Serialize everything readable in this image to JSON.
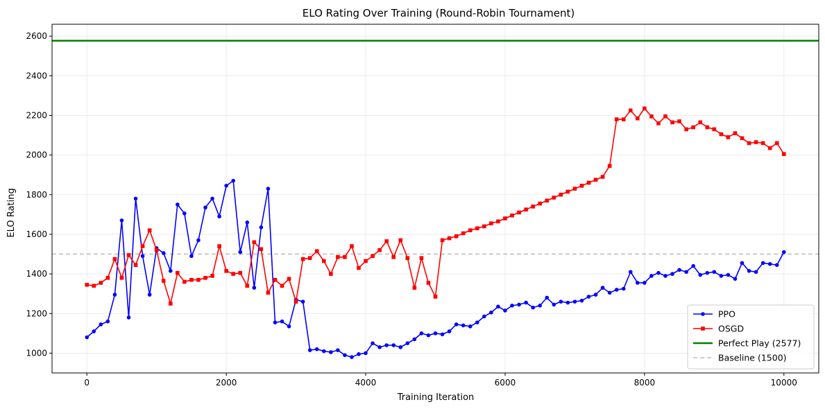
{
  "chart_data": {
    "type": "line",
    "title": "ELO Rating Over Training (Round-Robin Tournament)",
    "xlabel": "Training Iteration",
    "ylabel": "ELO Rating",
    "xlim": [
      -500,
      10500
    ],
    "ylim": [
      900,
      2660
    ],
    "xticks": [
      0,
      2000,
      4000,
      6000,
      8000,
      10000
    ],
    "yticks": [
      1000,
      1200,
      1400,
      1600,
      1800,
      2000,
      2200,
      2400,
      2600
    ],
    "grid": true,
    "legend_position": "bottom-right",
    "x_step": 100,
    "series": [
      {
        "name": "PPO",
        "color": "#0000ff",
        "marker": "circle",
        "values": [
          1080,
          1110,
          1145,
          1160,
          1295,
          1670,
          1180,
          1780,
          1490,
          1295,
          1530,
          1505,
          1415,
          1750,
          1705,
          1490,
          1570,
          1735,
          1780,
          1690,
          1845,
          1870,
          1510,
          1660,
          1330,
          1635,
          1830,
          1155,
          1160,
          1135,
          1270,
          1260,
          1015,
          1020,
          1010,
          1005,
          1015,
          990,
          980,
          995,
          1000,
          1050,
          1030,
          1040,
          1040,
          1030,
          1050,
          1070,
          1100,
          1090,
          1100,
          1095,
          1110,
          1145,
          1140,
          1135,
          1155,
          1185,
          1205,
          1235,
          1215,
          1240,
          1245,
          1255,
          1230,
          1240,
          1280,
          1245,
          1260,
          1255,
          1260,
          1265,
          1285,
          1295,
          1330,
          1305,
          1320,
          1325,
          1410,
          1355,
          1355,
          1390,
          1405,
          1390,
          1400,
          1420,
          1410,
          1440,
          1395,
          1405,
          1410,
          1390,
          1395,
          1375,
          1455,
          1415,
          1410,
          1455,
          1450,
          1445,
          1510
        ]
      },
      {
        "name": "OSGD",
        "color": "#ff0000",
        "marker": "square",
        "values": [
          1345,
          1340,
          1355,
          1380,
          1475,
          1380,
          1495,
          1445,
          1540,
          1620,
          1520,
          1365,
          1250,
          1405,
          1360,
          1370,
          1370,
          1380,
          1390,
          1540,
          1415,
          1400,
          1405,
          1340,
          1560,
          1525,
          1305,
          1370,
          1340,
          1375,
          1260,
          1475,
          1480,
          1515,
          1465,
          1400,
          1485,
          1485,
          1540,
          1430,
          1465,
          1490,
          1520,
          1565,
          1485,
          1570,
          1480,
          1330,
          1480,
          1355,
          1285,
          1570,
          1580,
          1590,
          1605,
          1620,
          1630,
          1640,
          1655,
          1665,
          1680,
          1695,
          1710,
          1725,
          1740,
          1755,
          1770,
          1785,
          1800,
          1815,
          1830,
          1845,
          1860,
          1875,
          1890,
          1945,
          2180,
          2180,
          2225,
          2185,
          2235,
          2195,
          2160,
          2195,
          2165,
          2170,
          2130,
          2140,
          2165,
          2140,
          2130,
          2105,
          2090,
          2110,
          2085,
          2060,
          2065,
          2060,
          2035,
          2060,
          2005
        ]
      }
    ],
    "reference_lines": [
      {
        "name": "Perfect Play (2577)",
        "value": 2577,
        "color": "#008000",
        "style": "solid"
      },
      {
        "name": "Baseline (1500)",
        "value": 1500,
        "color": "#bbbbbb",
        "style": "dashed"
      }
    ]
  }
}
